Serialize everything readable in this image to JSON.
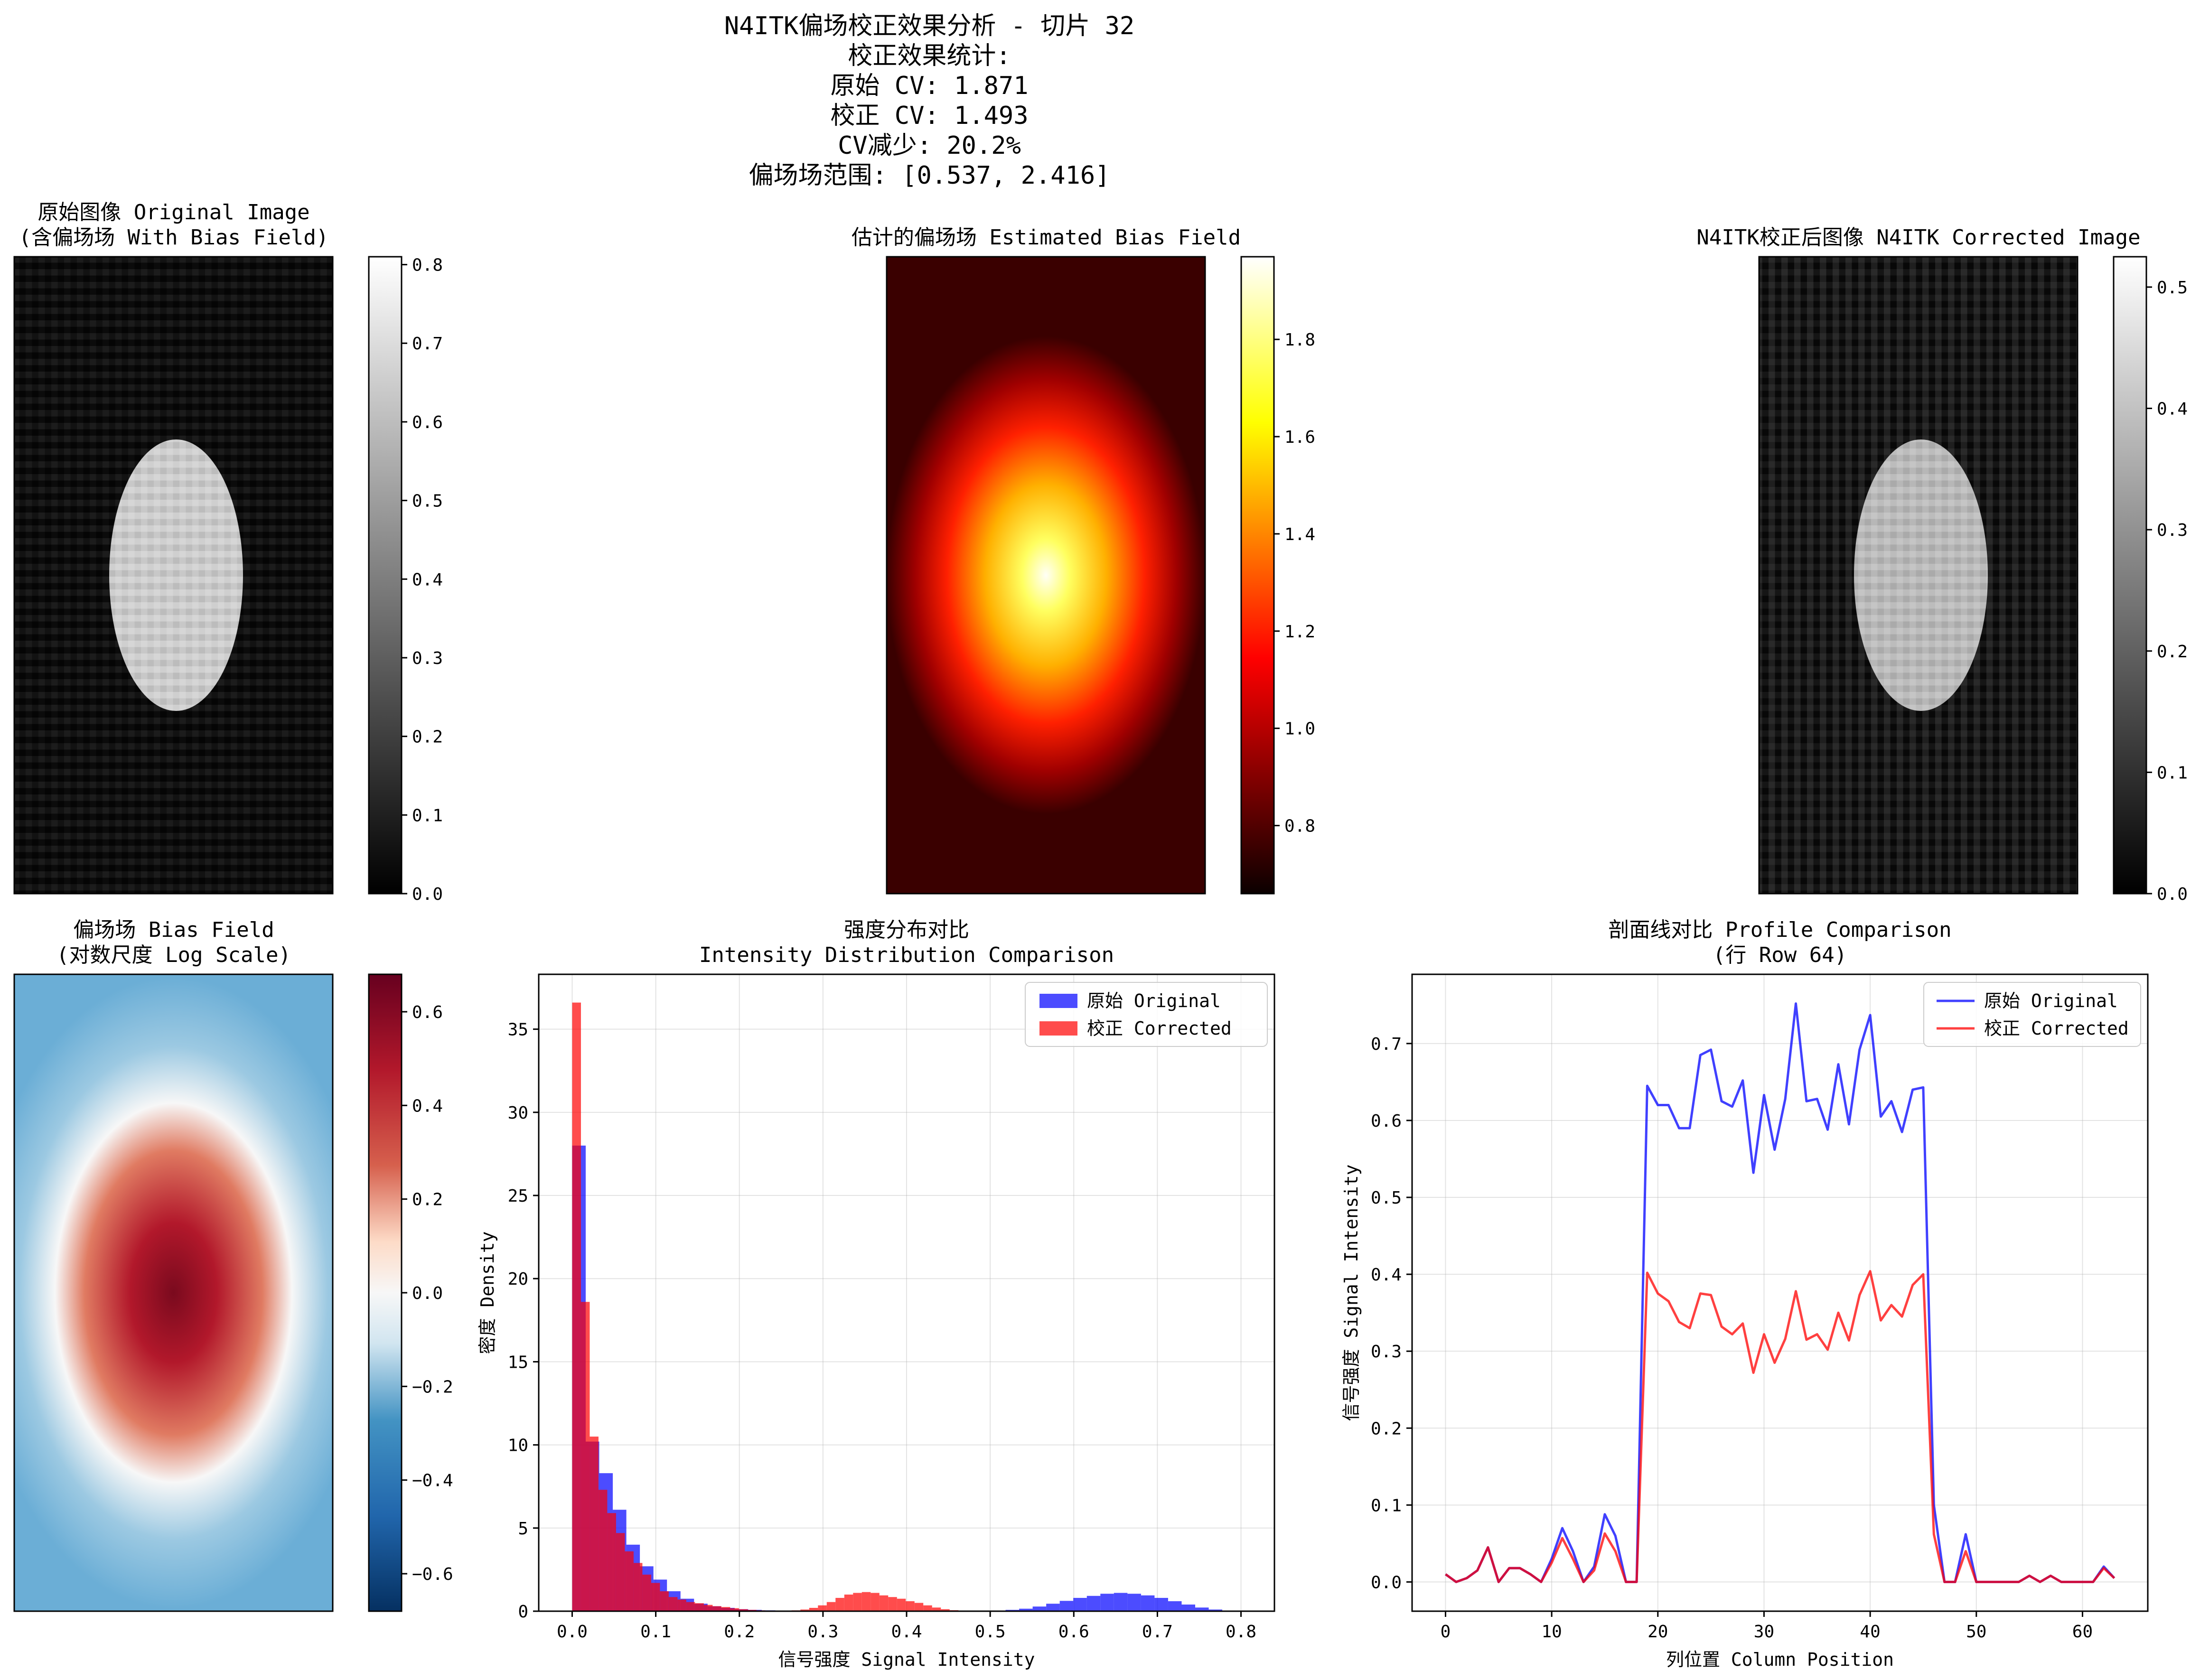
{
  "suptitle": [
    "N4ITK偏场校正效果分析 - 切片 32",
    "校正效果统计:",
    "原始 CV: 1.871",
    "校正 CV: 1.493",
    "CV减少: 20.2%",
    "偏场场范围: [0.537, 2.416]"
  ],
  "colors": {
    "original": "#0000ff",
    "corrected": "#ff0000"
  },
  "chart_data": [
    {
      "id": "original_image",
      "type": "heatmap",
      "title": [
        "原始图像 Original Image",
        "(含偏场场 With Bias Field)"
      ],
      "colormap": "gray",
      "colorbar": {
        "range": [
          0,
          0.81
        ],
        "ticks": [
          0.0,
          0.1,
          0.2,
          0.3,
          0.4,
          0.5,
          0.6,
          0.7,
          0.8
        ],
        "tick_labels": [
          "0.0",
          "0.1",
          "0.2",
          "0.3",
          "0.4",
          "0.5",
          "0.6",
          "0.7",
          "0.8"
        ]
      },
      "content": "noisy background (~0.02) with bright ellipse (~0.6)"
    },
    {
      "id": "estimated_bias_field",
      "type": "heatmap",
      "title": [
        "估计的偏场场 Estimated Bias Field"
      ],
      "colormap": "hot",
      "colorbar": {
        "range": [
          0.66,
          1.97
        ],
        "ticks": [
          0.8,
          1.0,
          1.2,
          1.4,
          1.6,
          1.8
        ],
        "tick_labels": [
          "0.8",
          "1.0",
          "1.2",
          "1.4",
          "1.6",
          "1.8"
        ]
      },
      "content": "smooth gaussian peak at center"
    },
    {
      "id": "corrected_image",
      "type": "heatmap",
      "title": [
        "N4ITK校正后图像 N4ITK Corrected Image"
      ],
      "colormap": "gray",
      "colorbar": {
        "range": [
          0,
          0.525
        ],
        "ticks": [
          0.0,
          0.1,
          0.2,
          0.3,
          0.4,
          0.5
        ],
        "tick_labels": [
          "0.0",
          "0.1",
          "0.2",
          "0.3",
          "0.4",
          "0.5"
        ]
      },
      "content": "noisy background with ellipse (~0.35)"
    },
    {
      "id": "log_bias_field",
      "type": "heatmap",
      "title": [
        "偏场场 Bias Field",
        "(对数尺度 Log Scale)"
      ],
      "colormap": "RdBu_r",
      "colorbar": {
        "range": [
          -0.68,
          0.68
        ],
        "ticks": [
          -0.6,
          -0.4,
          -0.2,
          0.0,
          0.2,
          0.4,
          0.6
        ],
        "tick_labels": [
          "−0.6",
          "−0.4",
          "−0.2",
          "0.0",
          "0.2",
          "0.4",
          "0.6"
        ]
      },
      "content": "elliptical log bias field, positive center"
    },
    {
      "id": "intensity_histogram",
      "type": "bar",
      "title": [
        "强度分布对比",
        "Intensity Distribution Comparison"
      ],
      "xlabel": "信号强度 Signal Intensity",
      "ylabel": "密度 Density",
      "xlim": [
        -0.04,
        0.84
      ],
      "ylim": [
        0,
        38.3
      ],
      "xticks": [
        0.0,
        0.1,
        0.2,
        0.3,
        0.4,
        0.5,
        0.6,
        0.7,
        0.8
      ],
      "xtick_labels": [
        "0.0",
        "0.1",
        "0.2",
        "0.3",
        "0.4",
        "0.5",
        "0.6",
        "0.7",
        "0.8"
      ],
      "yticks": [
        0,
        5,
        10,
        15,
        20,
        25,
        30,
        35
      ],
      "ytick_labels": [
        "0",
        "5",
        "10",
        "15",
        "20",
        "25",
        "30",
        "35"
      ],
      "legend": {
        "position": "top-right",
        "entries": [
          "原始 Original",
          "校正 Corrected"
        ]
      },
      "series": [
        {
          "name": "原始 Original",
          "bin_start": 0.0,
          "bin_width": 0.0162,
          "values": [
            28,
            10.2,
            8.3,
            6.1,
            4.0,
            2.7,
            1.9,
            1.2,
            0.75,
            0.45,
            0.3,
            0.2,
            0.12,
            0.08,
            0.05,
            0.03,
            0.02,
            0,
            0,
            0,
            0,
            0,
            0,
            0,
            0,
            0,
            0,
            0,
            0,
            0,
            0,
            0.02,
            0.08,
            0.15,
            0.28,
            0.45,
            0.62,
            0.8,
            0.92,
            1.05,
            1.1,
            1.05,
            0.95,
            0.8,
            0.6,
            0.4,
            0.22,
            0.1,
            0.04,
            0.02
          ]
        },
        {
          "name": "校正 Corrected",
          "bin_start": 0.0,
          "bin_width": 0.0105,
          "values": [
            36.6,
            18.6,
            10.5,
            7.3,
            5.9,
            4.7,
            3.6,
            2.9,
            2.2,
            1.7,
            1.2,
            0.85,
            0.7,
            0.55,
            0.48,
            0.38,
            0.3,
            0.25,
            0.18,
            0.12,
            0.08,
            0.05,
            0.03,
            0.02,
            0.03,
            0.05,
            0.1,
            0.2,
            0.35,
            0.55,
            0.8,
            1.0,
            1.1,
            1.15,
            1.1,
            0.95,
            0.85,
            0.75,
            0.6,
            0.5,
            0.35,
            0.22,
            0.12,
            0.06,
            0.03,
            0.02,
            0.01,
            0,
            0,
            0
          ]
        }
      ]
    },
    {
      "id": "profile_comparison",
      "type": "line",
      "title": [
        "剖面线对比 Profile Comparison",
        "(行 Row 64)"
      ],
      "xlabel": "列位置 Column Position",
      "ylabel": "信号强度 Signal Intensity",
      "xlim": [
        -3.15,
        66.15
      ],
      "ylim": [
        -0.038,
        0.79
      ],
      "xticks": [
        0,
        10,
        20,
        30,
        40,
        50,
        60
      ],
      "xtick_labels": [
        "0",
        "10",
        "20",
        "30",
        "40",
        "50",
        "60"
      ],
      "yticks": [
        0.0,
        0.1,
        0.2,
        0.3,
        0.4,
        0.5,
        0.6,
        0.7
      ],
      "ytick_labels": [
        "0.0",
        "0.1",
        "0.2",
        "0.3",
        "0.4",
        "0.5",
        "0.6",
        "0.7"
      ],
      "legend": {
        "position": "top-right",
        "entries": [
          "原始 Original",
          "校正 Corrected"
        ]
      },
      "x": [
        0,
        1,
        2,
        3,
        4,
        5,
        6,
        7,
        8,
        9,
        10,
        11,
        12,
        13,
        14,
        15,
        16,
        17,
        18,
        19,
        20,
        21,
        22,
        23,
        24,
        25,
        26,
        27,
        28,
        29,
        30,
        31,
        32,
        33,
        34,
        35,
        36,
        37,
        38,
        39,
        40,
        41,
        42,
        43,
        44,
        45,
        46,
        47,
        48,
        49,
        50,
        51,
        52,
        53,
        54,
        55,
        56,
        57,
        58,
        59,
        60,
        61,
        62,
        63
      ],
      "series": [
        {
          "name": "原始 Original",
          "values": [
            0.01,
            0.0,
            0.005,
            0.015,
            0.045,
            0.0,
            0.018,
            0.018,
            0.01,
            0.0,
            0.03,
            0.07,
            0.04,
            0.0,
            0.02,
            0.088,
            0.06,
            0.0,
            0.0,
            0.645,
            0.62,
            0.62,
            0.59,
            0.59,
            0.685,
            0.692,
            0.625,
            0.618,
            0.652,
            0.532,
            0.633,
            0.562,
            0.628,
            0.752,
            0.625,
            0.628,
            0.588,
            0.673,
            0.595,
            0.692,
            0.737,
            0.605,
            0.625,
            0.585,
            0.64,
            0.643,
            0.1,
            0.0,
            0.0,
            0.062,
            0.0,
            0.0,
            0.0,
            0.0,
            0.0,
            0.008,
            0.0,
            0.008,
            0.0,
            0.0,
            0.0,
            0.0,
            0.02,
            0.005
          ]
        },
        {
          "name": "校正 Corrected",
          "values": [
            0.01,
            0.0,
            0.005,
            0.015,
            0.045,
            0.0,
            0.018,
            0.018,
            0.01,
            0.0,
            0.025,
            0.057,
            0.03,
            0.0,
            0.015,
            0.063,
            0.04,
            0.0,
            0.0,
            0.402,
            0.375,
            0.365,
            0.338,
            0.33,
            0.375,
            0.373,
            0.332,
            0.322,
            0.336,
            0.272,
            0.322,
            0.285,
            0.316,
            0.378,
            0.315,
            0.322,
            0.302,
            0.35,
            0.314,
            0.373,
            0.404,
            0.34,
            0.36,
            0.345,
            0.386,
            0.4,
            0.062,
            0.0,
            0.0,
            0.04,
            0.0,
            0.0,
            0.0,
            0.0,
            0.0,
            0.008,
            0.0,
            0.008,
            0.0,
            0.0,
            0.0,
            0.0,
            0.018,
            0.005
          ]
        }
      ]
    }
  ]
}
